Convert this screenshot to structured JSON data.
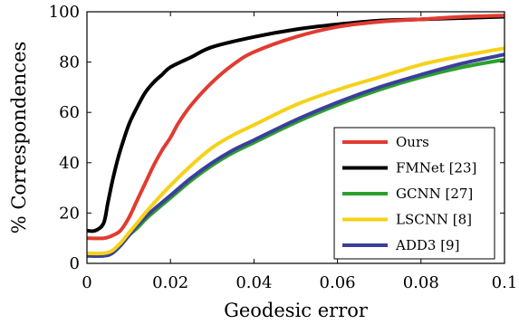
{
  "chart_data": {
    "type": "line",
    "xlabel": "Geodesic error",
    "ylabel": "% Correspondences",
    "xlim": [
      0,
      0.1
    ],
    "ylim": [
      0,
      100
    ],
    "xticks": [
      0,
      0.02,
      0.04,
      0.06,
      0.08,
      0.1
    ],
    "xtick_labels": [
      "0",
      "0.02",
      "0.04",
      "0.06",
      "0.08",
      "0.1"
    ],
    "yticks": [
      0,
      20,
      40,
      60,
      80,
      100
    ],
    "ytick_labels": [
      "0",
      "20",
      "40",
      "60",
      "80",
      "100"
    ],
    "grid": false,
    "legend_position": "bottom-right",
    "series": [
      {
        "name": "Ours",
        "color": "#e03c31",
        "x": [
          0,
          0.004,
          0.006,
          0.008,
          0.01,
          0.012,
          0.014,
          0.016,
          0.018,
          0.02,
          0.022,
          0.025,
          0.03,
          0.035,
          0.04,
          0.05,
          0.06,
          0.07,
          0.08,
          0.09,
          0.1
        ],
        "y": [
          10,
          10,
          11,
          13,
          18,
          25,
          32,
          39,
          45,
          50,
          56,
          63,
          72,
          79,
          84,
          90,
          94,
          96,
          97,
          98,
          98.5
        ]
      },
      {
        "name": "FMNet [23]",
        "color": "#000000",
        "x": [
          0,
          0.002,
          0.004,
          0.005,
          0.006,
          0.007,
          0.008,
          0.01,
          0.012,
          0.014,
          0.016,
          0.018,
          0.02,
          0.025,
          0.03,
          0.04,
          0.05,
          0.06,
          0.07,
          0.08,
          0.09,
          0.1
        ],
        "y": [
          13,
          13,
          16,
          24,
          32,
          39,
          45,
          55,
          62,
          68,
          72,
          75,
          78,
          82,
          86,
          90,
          93,
          95,
          96.5,
          97,
          97.5,
          98
        ]
      },
      {
        "name": "GCNN [27]",
        "color": "#2ca02c",
        "x": [
          0,
          0.004,
          0.006,
          0.008,
          0.01,
          0.012,
          0.015,
          0.02,
          0.025,
          0.03,
          0.035,
          0.04,
          0.05,
          0.06,
          0.07,
          0.08,
          0.09,
          0.1
        ],
        "y": [
          3,
          3,
          4,
          7,
          11,
          14,
          19,
          26,
          33,
          39,
          44,
          48,
          56,
          63,
          69,
          74,
          78,
          81
        ]
      },
      {
        "name": "LSCNN [8]",
        "color": "#f5d218",
        "x": [
          0,
          0.004,
          0.006,
          0.008,
          0.01,
          0.012,
          0.015,
          0.02,
          0.025,
          0.03,
          0.035,
          0.04,
          0.05,
          0.06,
          0.07,
          0.08,
          0.09,
          0.1
        ],
        "y": [
          4,
          4,
          5,
          8,
          12,
          16,
          22,
          31,
          39,
          46,
          51,
          55,
          63,
          69,
          74,
          79,
          82.5,
          85.5
        ]
      },
      {
        "name": "ADD3 [9]",
        "color": "#3b3f9b",
        "x": [
          0,
          0.004,
          0.006,
          0.008,
          0.01,
          0.012,
          0.015,
          0.02,
          0.025,
          0.03,
          0.035,
          0.04,
          0.05,
          0.06,
          0.07,
          0.08,
          0.09,
          0.1
        ],
        "y": [
          3,
          3,
          4,
          7,
          11,
          15,
          20,
          27,
          34,
          40,
          45,
          49,
          57,
          64,
          70,
          75,
          79.5,
          83
        ]
      }
    ]
  }
}
